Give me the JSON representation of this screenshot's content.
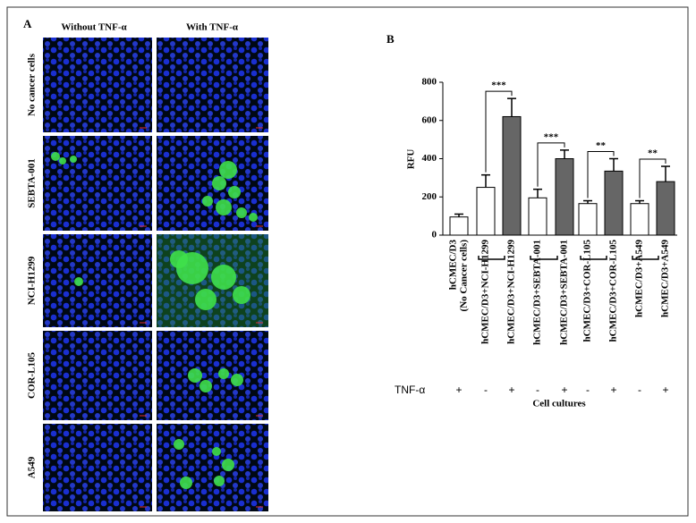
{
  "panel_a": {
    "label": "A",
    "columns": [
      "Without  TNF-α",
      "With  TNF-α"
    ],
    "rows": [
      "No cancer cells",
      "SEBTA-001",
      "NCI-H1299",
      "COR-L105",
      "A549"
    ]
  },
  "chart_data": {
    "type": "bar",
    "panel_label": "B",
    "categories": [
      [
        "hCMEC/D3",
        "(No Cancer cells)"
      ],
      "hCMEC/D3+NCI-H1299",
      "hCMEC/D3+NCI-H1299",
      "hCMEC/D3+SEBTA-001",
      "hCMEC/D3+SEBTA-001",
      "hCMEC/D3+COR-L105",
      "hCMEC/D3+COR-L105",
      "hCMEC/D3+A549",
      "hCMEC/D3+A549"
    ],
    "values": [
      95,
      250,
      620,
      195,
      400,
      165,
      335,
      165,
      280
    ],
    "errors": [
      15,
      65,
      95,
      45,
      45,
      15,
      65,
      15,
      80
    ],
    "colors": [
      "#ffffff",
      "#ffffff",
      "#666666",
      "#ffffff",
      "#666666",
      "#ffffff",
      "#666666",
      "#ffffff",
      "#666666"
    ],
    "tnf_label": "TNF-α",
    "tnf": [
      "+",
      "-",
      "+",
      "-",
      "+",
      "-",
      "+",
      "-",
      "+"
    ],
    "annotations": [
      "***",
      "***",
      "**",
      "**"
    ],
    "y_label": "RFU",
    "x_label": "Cell cultures",
    "ylim": [
      0,
      800
    ],
    "yticks": [
      0,
      200,
      400,
      600,
      800
    ]
  }
}
